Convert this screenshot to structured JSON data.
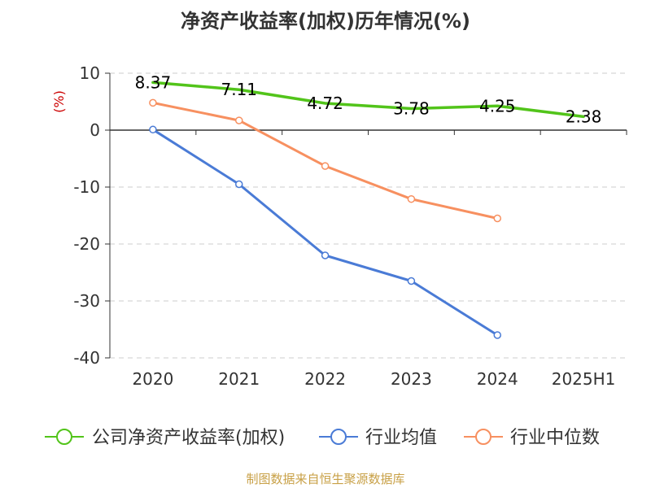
{
  "title": "净资产收益率(加权)历年情况(%)",
  "source": "制图数据来自恒生聚源数据库",
  "chart_data": {
    "type": "line",
    "title": "净资产收益率(加权)历年情况(%)",
    "ylabel": "(%)",
    "xlabel": "",
    "categories": [
      "2020",
      "2021",
      "2022",
      "2023",
      "2024",
      "2025H1"
    ],
    "ylim": [
      -40,
      10
    ],
    "yticks": [
      10,
      0,
      -10,
      -20,
      -30,
      -40
    ],
    "grid": true,
    "legend_position": "bottom",
    "series": [
      {
        "name": "公司净资产收益率(加权)",
        "color": "#52c41a",
        "values": [
          8.37,
          7.11,
          4.72,
          3.78,
          4.25,
          2.38
        ],
        "labels": [
          "8.37",
          "7.11",
          "4.72",
          "3.78",
          "4.25",
          "2.38"
        ],
        "show_points": false
      },
      {
        "name": "行业均值",
        "color": "#4a7bd6",
        "values": [
          0.1,
          -9.5,
          -22.0,
          -26.5,
          -36.0,
          null
        ],
        "show_points": true
      },
      {
        "name": "行业中位数",
        "color": "#f79060",
        "values": [
          4.8,
          1.7,
          -6.3,
          -12.1,
          -15.5,
          null
        ],
        "show_points": true
      }
    ]
  }
}
